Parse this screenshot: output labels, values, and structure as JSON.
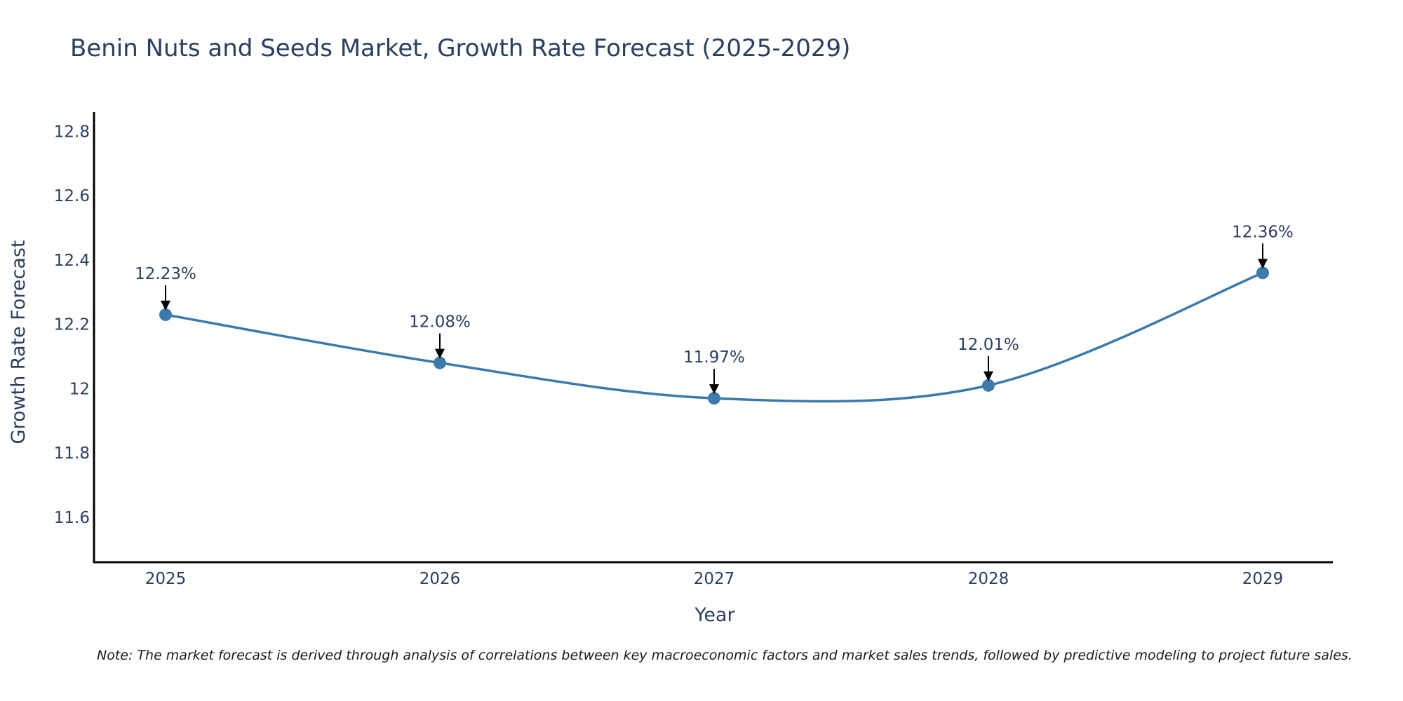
{
  "chart_data": {
    "type": "line",
    "title": "Benin Nuts and Seeds Market, Growth Rate Forecast (2025-2029)",
    "xlabel": "Year",
    "ylabel": "Growth Rate Forecast",
    "categories": [
      "2025",
      "2026",
      "2027",
      "2028",
      "2029"
    ],
    "values": [
      12.23,
      12.08,
      11.97,
      12.01,
      12.36
    ],
    "data_labels": [
      "12.23%",
      "12.08%",
      "11.97%",
      "12.01%",
      "12.36%"
    ],
    "y_ticks": [
      11.6,
      11.8,
      12,
      12.2,
      12.4,
      12.6,
      12.8
    ],
    "y_tick_labels": [
      "11.6",
      "11.8",
      "12",
      "12.2",
      "12.4",
      "12.6",
      "12.8"
    ],
    "ylim": [
      11.46,
      12.86
    ],
    "grid": false,
    "series_color": "#3b7aab",
    "note": "Note: The market forecast is derived through analysis of correlations between key macroeconomic factors and market sales trends, followed by predictive modeling to project future sales."
  }
}
